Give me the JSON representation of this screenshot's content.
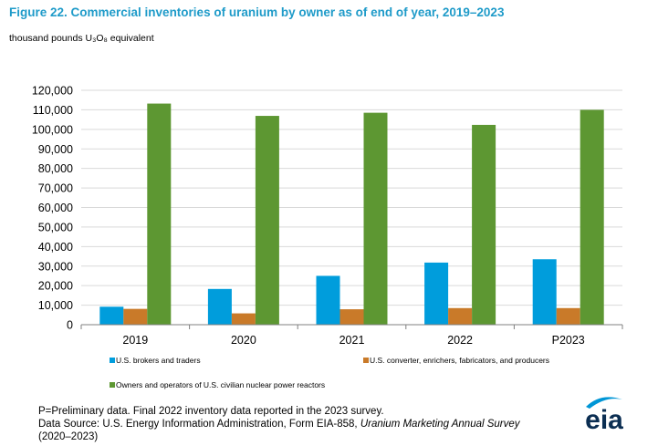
{
  "title": "Figure 22. Commercial inventories of uranium by owner as of end of year, 2019–2023",
  "units_label": "thousand pounds U₃O₈ equivalent",
  "notes": {
    "line1": "P=Preliminary data. Final 2022 inventory data reported in the 2023 survey.",
    "line2_prefix": "Data Source: U.S. Energy Information Administration, Form EIA-858, ",
    "line2_italic": "Uranium Marketing Annual Survey",
    "line3": "(2020–2023)"
  },
  "logo": {
    "text": "eia",
    "accent": "#0096d6"
  },
  "chart_data": {
    "type": "bar",
    "categories": [
      "2019",
      "2020",
      "2021",
      "2022",
      "P2023"
    ],
    "ylim": [
      0,
      120000
    ],
    "ytick_step": 10000,
    "ytick_labels": [
      "0",
      "10,000",
      "20,000",
      "30,000",
      "40,000",
      "50,000",
      "60,000",
      "70,000",
      "80,000",
      "90,000",
      "100,000",
      "110,000",
      "120,000"
    ],
    "grid": true,
    "legend_placement": "bottom",
    "series": [
      {
        "name": "U.S. brokers and traders",
        "color": "#009ddc",
        "values": [
          9200,
          18300,
          25000,
          31800,
          33500
        ]
      },
      {
        "name": "U.S. converter, enrichers, fabricators, and producers",
        "color": "#c97a29",
        "values": [
          8100,
          5800,
          7900,
          8500,
          8500
        ]
      },
      {
        "name": "Owners and operators of U.S. civilian nuclear power reactors",
        "color": "#5d9732",
        "values": [
          113200,
          106900,
          108500,
          102300,
          110000
        ]
      }
    ]
  }
}
